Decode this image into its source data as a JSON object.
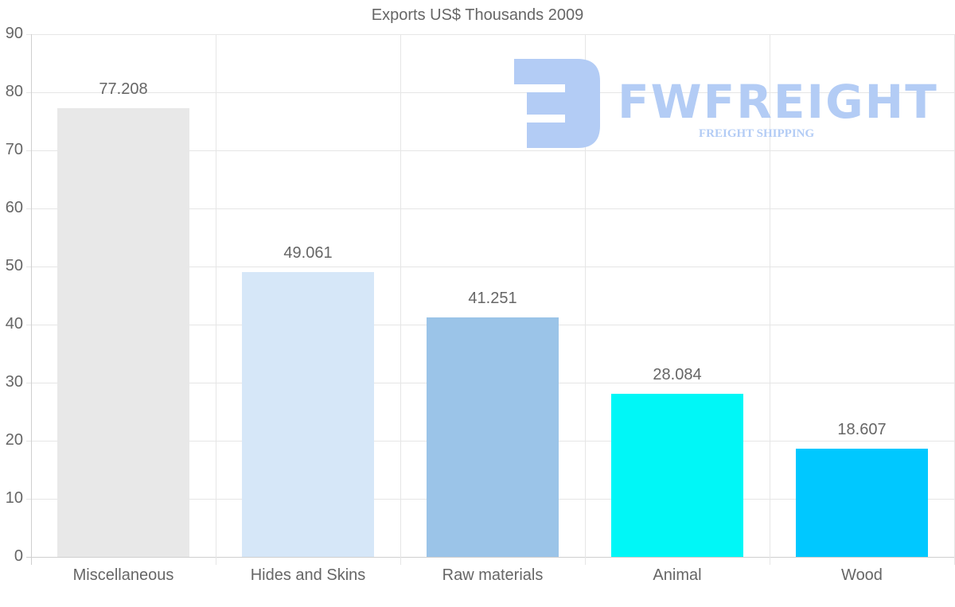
{
  "chart_data": {
    "type": "bar",
    "title": "Exports US$ Thousands 2009",
    "categories": [
      "Miscellaneous",
      "Hides and Skins",
      "Raw materials",
      "Animal",
      "Wood"
    ],
    "values": [
      77.208,
      49.061,
      41.251,
      28.084,
      18.607
    ],
    "value_labels": [
      "77.208",
      "49.061",
      "41.251",
      "28.084",
      "18.607"
    ],
    "colors": [
      "#e8e8e8",
      "#d6e7f8",
      "#9bc4e8",
      "#00f7f7",
      "#00c8ff"
    ],
    "xlabel": "",
    "ylabel": "",
    "ylim": [
      0,
      90
    ],
    "yticks": [
      "90",
      "80",
      "70",
      "60",
      "50",
      "40",
      "30",
      "20",
      "10",
      "0"
    ],
    "grid": true,
    "legend": "none"
  },
  "watermark": {
    "brand": "FWFREIGHT",
    "tagline": "FREIGHT SHIPPING",
    "color": "#b3ccf5"
  }
}
